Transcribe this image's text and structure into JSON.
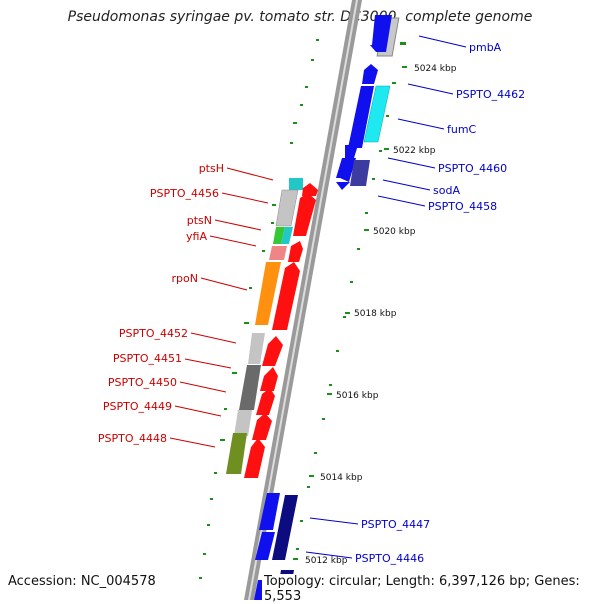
{
  "header": {
    "title": "Pseudomonas syringae pv. tomato str. DC3000, complete genome"
  },
  "footer": {
    "accession": "Accession: NC_004578",
    "topology": "Topology: circular; Length: 6,397,126 bp; Genes: 5,553"
  },
  "scale": [
    {
      "label": "5024 kbp"
    },
    {
      "label": "5022 kbp"
    },
    {
      "label": "5020 kbp"
    },
    {
      "label": "5018 kbp"
    },
    {
      "label": "5016 kbp"
    },
    {
      "label": "5014 kbp"
    },
    {
      "label": "5012 kbp"
    }
  ],
  "right_genes": [
    {
      "name": "pmbA"
    },
    {
      "name": "PSPTO_4462"
    },
    {
      "name": "fumC"
    },
    {
      "name": "PSPTO_4460"
    },
    {
      "name": "sodA"
    },
    {
      "name": "PSPTO_4458"
    },
    {
      "name": "PSPTO_4447"
    },
    {
      "name": "PSPTO_4446"
    }
  ],
  "left_genes": [
    {
      "name": "ptsH"
    },
    {
      "name": "PSPTO_4456"
    },
    {
      "name": "ptsN"
    },
    {
      "name": "yfiA"
    },
    {
      "name": "rpoN"
    },
    {
      "name": "PSPTO_4452"
    },
    {
      "name": "PSPTO_4451"
    },
    {
      "name": "PSPTO_4450"
    },
    {
      "name": "PSPTO_4449"
    },
    {
      "name": "PSPTO_4448"
    }
  ],
  "colors": {
    "forward": "#ff0000",
    "reverse": "#1010ee",
    "navy": "#0c0c80",
    "label_left": "#cc0000",
    "label_right": "#0000cc",
    "gc_dots": "#1a8f1a"
  }
}
